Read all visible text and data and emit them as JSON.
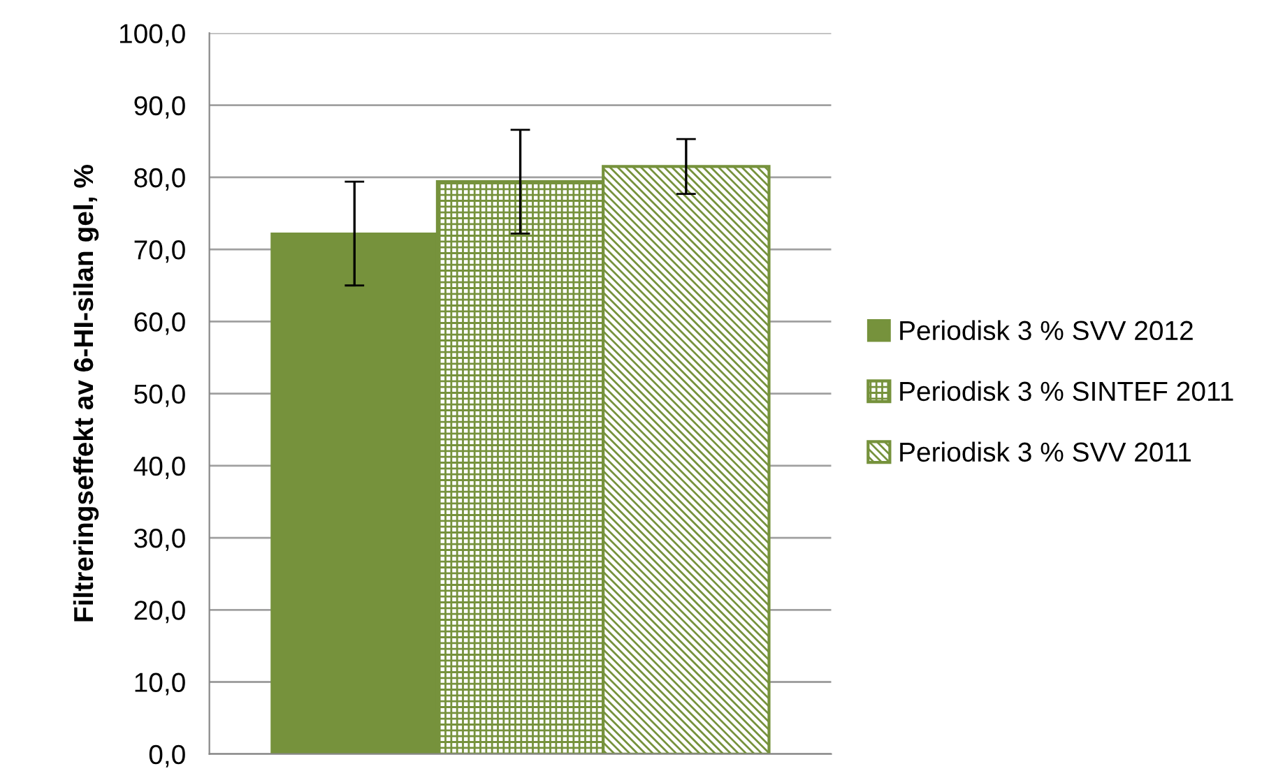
{
  "chart_data": {
    "type": "bar",
    "ylabel": "Filtreringseffekt av 6-HI-silan gel, %",
    "categories": [
      null
    ],
    "series": [
      {
        "name": "Periodisk 3 % SVV 2012",
        "color": "#76923c",
        "values": [
          72.2
        ],
        "errors": [
          7.2
        ]
      },
      {
        "name": "Periodisk 3 % SINTEF 2011",
        "color": "#76923c",
        "values": [
          79.4
        ],
        "errors": [
          7.2
        ]
      },
      {
        "name": "Periodisk 3 % SVV 2011",
        "color": "#76923c",
        "values": [
          81.5
        ],
        "errors": [
          3.8
        ]
      }
    ],
    "ylim": [
      0,
      100
    ],
    "yticks": [
      {
        "value": 0,
        "label": "0,0"
      },
      {
        "value": 10,
        "label": "10,0"
      },
      {
        "value": 20,
        "label": "20,0"
      },
      {
        "value": 30,
        "label": "30,0"
      },
      {
        "value": 40,
        "label": "40,0"
      },
      {
        "value": 50,
        "label": "50,0"
      },
      {
        "value": 60,
        "label": "60,0"
      },
      {
        "value": 70,
        "label": "70,0"
      },
      {
        "value": 80,
        "label": "80,0"
      },
      {
        "value": 90,
        "label": "90,0"
      },
      {
        "value": 100,
        "label": "100,0"
      }
    ],
    "grid": "y",
    "legend": "right"
  }
}
